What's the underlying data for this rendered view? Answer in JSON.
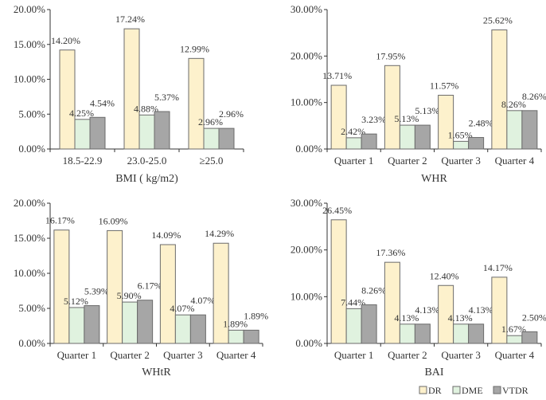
{
  "chart_data": [
    {
      "type": "bar",
      "xlabel": "BMI ( kg/m2)",
      "categories": [
        "18.5-22.9",
        "23.0-25.0",
        "≥25.0"
      ],
      "ylim": [
        0,
        20
      ],
      "yticks": [
        0,
        5,
        10,
        15,
        20
      ],
      "yticklabels": [
        "0.00%",
        "5.00%",
        "10.00%",
        "15.00%",
        "20.00%"
      ],
      "series": [
        {
          "name": "DR",
          "values": [
            14.2,
            17.24,
            12.99
          ],
          "labels": [
            "14.20%",
            "17.24%",
            "12.99%"
          ]
        },
        {
          "name": "DME",
          "values": [
            4.25,
            4.88,
            2.96
          ],
          "labels": [
            "4.25%",
            "4.88%",
            "2.96%"
          ]
        },
        {
          "name": "VTDR",
          "values": [
            4.54,
            5.37,
            2.96
          ],
          "labels": [
            "4.54%",
            "5.37%",
            "2.96%"
          ]
        }
      ]
    },
    {
      "type": "bar",
      "xlabel": "WHR",
      "categories": [
        "Quarter 1",
        "Quarter 2",
        "Quarter 3",
        "Quarter 4"
      ],
      "ylim": [
        0,
        30
      ],
      "yticks": [
        0,
        10,
        20,
        30
      ],
      "yticklabels": [
        "0.00%",
        "10.00%",
        "20.00%",
        "30.00%"
      ],
      "series": [
        {
          "name": "DR",
          "values": [
            13.71,
            17.95,
            11.57,
            25.62
          ],
          "labels": [
            "13.71%",
            "17.95%",
            "11.57%",
            "25.62%"
          ]
        },
        {
          "name": "DME",
          "values": [
            2.42,
            5.13,
            1.65,
            8.26
          ],
          "labels": [
            "2.42%",
            "5.13%",
            "1.65%",
            "8.26%"
          ]
        },
        {
          "name": "VTDR",
          "values": [
            3.23,
            5.13,
            2.48,
            8.26
          ],
          "labels": [
            "3.23%",
            "5.13%",
            "2.48%",
            "8.26%"
          ]
        }
      ]
    },
    {
      "type": "bar",
      "xlabel": "WHtR",
      "categories": [
        "Quarter 1",
        "Quarter 2",
        "Quarter 3",
        "Quarter 4"
      ],
      "ylim": [
        0,
        20
      ],
      "yticks": [
        0,
        5,
        10,
        15,
        20
      ],
      "yticklabels": [
        "0.00%",
        "5.00%",
        "10.00%",
        "15.00%",
        "20.00%"
      ],
      "series": [
        {
          "name": "DR",
          "values": [
            16.17,
            16.09,
            14.09,
            14.29
          ],
          "labels": [
            "16.17%",
            "16.09%",
            "14.09%",
            "14.29%"
          ]
        },
        {
          "name": "DME",
          "values": [
            5.12,
            5.9,
            4.07,
            1.89
          ],
          "labels": [
            "5.12%",
            "5.90%",
            "4.07%",
            "1.89%"
          ]
        },
        {
          "name": "VTDR",
          "values": [
            5.39,
            6.17,
            4.07,
            1.89
          ],
          "labels": [
            "5.39%",
            "6.17%",
            "4.07%",
            "1.89%"
          ]
        }
      ]
    },
    {
      "type": "bar",
      "xlabel": "BAI",
      "categories": [
        "Quarter 1",
        "Quarter 2",
        "Quarter 3",
        "Quarter 4"
      ],
      "ylim": [
        0,
        30
      ],
      "yticks": [
        0,
        10,
        20,
        30
      ],
      "yticklabels": [
        "0.00%",
        "10.00%",
        "20.00%",
        "30.00%"
      ],
      "series": [
        {
          "name": "DR",
          "values": [
            26.45,
            17.36,
            12.4,
            14.17
          ],
          "labels": [
            "26.45%",
            "17.36%",
            "12.40%",
            "14.17%"
          ]
        },
        {
          "name": "DME",
          "values": [
            7.44,
            4.13,
            4.13,
            1.67
          ],
          "labels": [
            "7.44%",
            "4.13%",
            "4.13%",
            "1.67%"
          ]
        },
        {
          "name": "VTDR",
          "values": [
            8.26,
            4.13,
            4.13,
            2.5
          ],
          "labels": [
            "8.26%",
            "4.13%",
            "4.13%",
            "2.50%"
          ]
        }
      ]
    }
  ],
  "legend": {
    "position": "bottom-right",
    "items": [
      {
        "name": "DR",
        "color": "#fdf1cc"
      },
      {
        "name": "DME",
        "color": "#e0f2df"
      },
      {
        "name": "VTDR",
        "color": "#a6a6a6"
      }
    ]
  },
  "colors": {
    "DR": "#fdf1cc",
    "DME": "#e0f2df",
    "VTDR": "#a6a6a6",
    "border": "#6b6b6b",
    "axis": "#333333"
  }
}
